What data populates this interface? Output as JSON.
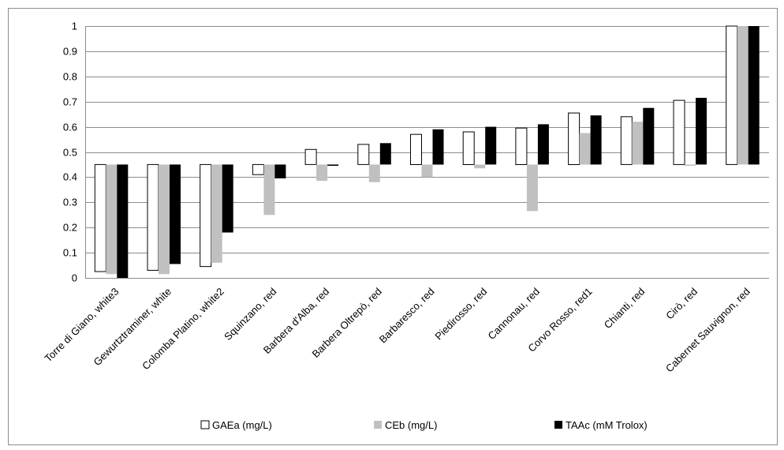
{
  "chart_data": {
    "type": "bar",
    "categories": [
      "Torre di Giano, white3",
      "Gewurtztraminer, white",
      "Colomba Platino, white2",
      "Squinzano, red",
      "Barbera d'Alba, red",
      "Barbera Oltrepò, red",
      "Barbaresco, red",
      "Piedirosso, red",
      "Cannonau, red",
      "Corvo Rosso, red1",
      "Chianti, red",
      "Cirò, red",
      "Cabernet Sauvignon, red"
    ],
    "series": [
      {
        "name": "GAEa (mg/L)",
        "color": "#ffffff",
        "values": [
          0.025,
          0.03,
          0.045,
          0.41,
          0.51,
          0.53,
          0.57,
          0.58,
          0.595,
          0.655,
          0.64,
          0.705,
          1.0
        ]
      },
      {
        "name": "CEb (mg/L)",
        "color": "#c0c0c0",
        "values": [
          0.015,
          0.015,
          0.06,
          0.25,
          0.385,
          0.38,
          0.4,
          0.435,
          0.265,
          0.575,
          0.62,
          0.445,
          1.0
        ]
      },
      {
        "name": "TAAc (mM Trolox)",
        "color": "#000000",
        "values": [
          0.0,
          0.055,
          0.18,
          0.395,
          0.445,
          0.535,
          0.59,
          0.6,
          0.61,
          0.645,
          0.675,
          0.715,
          1.0
        ]
      }
    ],
    "baseline": 0.45,
    "ylim": [
      0,
      1
    ],
    "yticks": [
      "0",
      "0.1",
      "0.2",
      "0.3",
      "0.4",
      "0.5",
      "0.6",
      "0.7",
      "0.8",
      "0.9",
      "1"
    ],
    "title": "",
    "xlabel": "",
    "ylabel": "",
    "grid": true,
    "legend_position": "bottom"
  }
}
